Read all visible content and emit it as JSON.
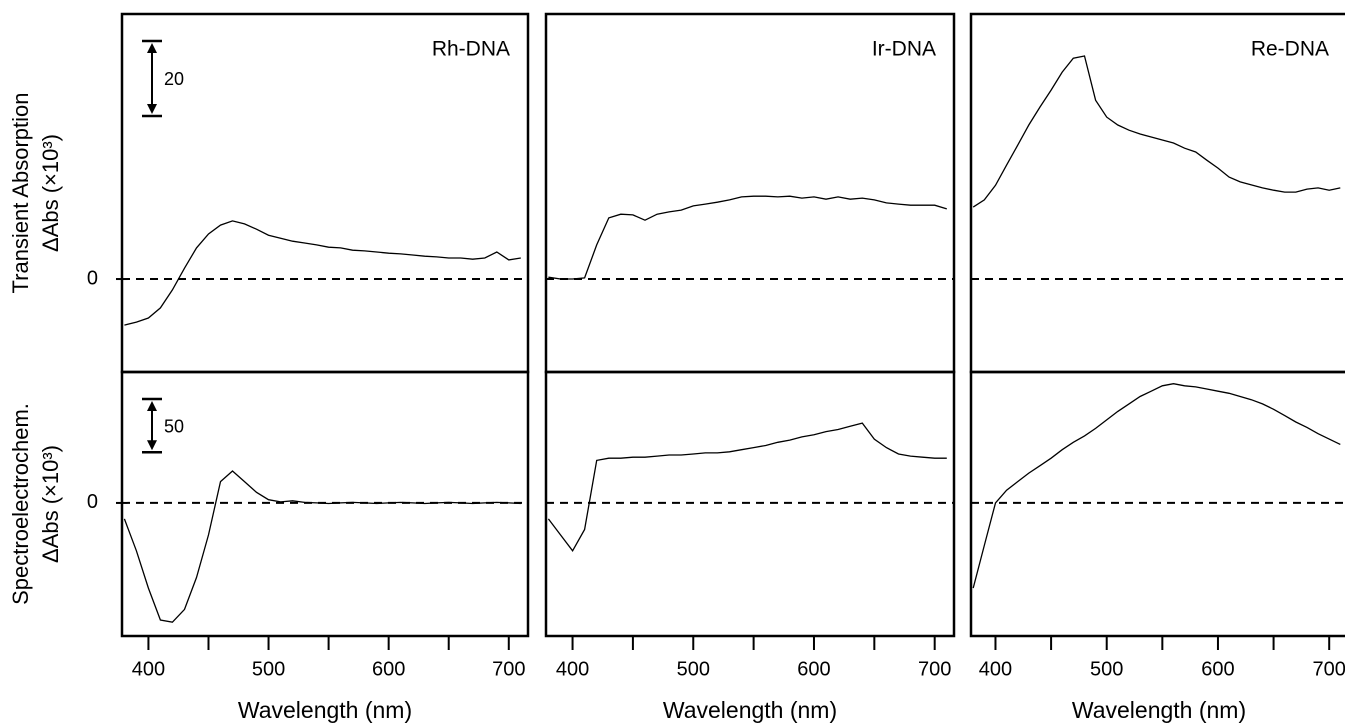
{
  "chart_data": [
    {
      "type": "line",
      "title": "Rh-DNA",
      "ylabel": [
        "Transient Absorption",
        "ΔAbs (×10³)"
      ],
      "color": "#000000",
      "x": [
        380,
        390,
        400,
        410,
        420,
        430,
        440,
        450,
        460,
        470,
        480,
        490,
        500,
        510,
        520,
        530,
        540,
        550,
        560,
        570,
        580,
        590,
        600,
        610,
        620,
        630,
        640,
        650,
        660,
        670,
        680,
        690,
        700,
        710
      ],
      "values": [
        -12.3,
        -11.5,
        -10.4,
        -7.7,
        -2.9,
        2.9,
        8.3,
        12,
        14.4,
        15.5,
        14.7,
        13.3,
        11.7,
        10.9,
        10.1,
        9.6,
        9.1,
        8.5,
        8.3,
        7.7,
        7.5,
        7.2,
        6.9,
        6.7,
        6.4,
        6.1,
        5.9,
        5.6,
        5.6,
        5.3,
        5.6,
        7.2,
        5.1,
        5.6
      ],
      "xlim": [
        378,
        716
      ],
      "ylim": [
        -24.8,
        70.7
      ],
      "yticks": [
        0
      ],
      "hline": 0,
      "scale_bar": 20
    },
    {
      "type": "line",
      "title": "Ir-DNA",
      "color": "#000000",
      "x": [
        380,
        390,
        400,
        410,
        420,
        430,
        440,
        450,
        460,
        470,
        480,
        490,
        500,
        510,
        520,
        530,
        540,
        550,
        560,
        570,
        580,
        590,
        600,
        610,
        620,
        630,
        640,
        650,
        660,
        670,
        680,
        690,
        700,
        710
      ],
      "values": [
        0.5,
        0,
        0,
        0.3,
        9.1,
        16.3,
        17.3,
        17.1,
        15.7,
        17.3,
        17.9,
        18.4,
        19.5,
        20,
        20.5,
        21.1,
        21.9,
        22.1,
        22.1,
        21.9,
        22.1,
        21.6,
        21.9,
        21.3,
        21.9,
        21.3,
        21.6,
        21.1,
        20.3,
        20,
        19.7,
        19.7,
        19.7,
        18.7
      ],
      "xlim": [
        378,
        716
      ],
      "ylim": [
        -24.8,
        70.7
      ],
      "hline": 0
    },
    {
      "type": "line",
      "title": "Re-DNA",
      "color": "#000000",
      "x": [
        380,
        390,
        400,
        410,
        420,
        430,
        440,
        450,
        460,
        470,
        480,
        490,
        500,
        510,
        520,
        530,
        540,
        550,
        560,
        570,
        580,
        590,
        600,
        610,
        620,
        630,
        640,
        650,
        660,
        670,
        680,
        690,
        700,
        710
      ],
      "values": [
        19.2,
        21.1,
        25,
        30.4,
        35.7,
        41.1,
        45.9,
        50.4,
        55.2,
        58.9,
        59.5,
        47.7,
        43.2,
        41.1,
        39.7,
        38.7,
        37.9,
        37.1,
        36.3,
        34.9,
        33.9,
        31.7,
        29.6,
        27.2,
        25.9,
        25.1,
        24.3,
        23.7,
        23.2,
        23.2,
        24,
        24.3,
        23.7,
        24.3
      ],
      "xlim": [
        378,
        716
      ],
      "ylim": [
        -24.8,
        70.7
      ],
      "hline": 0
    },
    {
      "type": "line",
      "ylabel": [
        "Spectroelectrochem.",
        "ΔAbs (×10³)"
      ],
      "xlabel": "Wavelength (nm)",
      "color": "#000000",
      "x": [
        380,
        390,
        400,
        410,
        420,
        430,
        440,
        450,
        460,
        470,
        480,
        490,
        500,
        510,
        520,
        530,
        540,
        550,
        560,
        570,
        580,
        590,
        600,
        610,
        620,
        630,
        640,
        650,
        660,
        670,
        680,
        690,
        700,
        710
      ],
      "values": [
        -15,
        -45,
        -80,
        -110,
        -112,
        -100,
        -70,
        -30,
        20,
        30,
        20,
        10,
        3,
        1,
        2,
        0.5,
        0,
        -0.5,
        0,
        0.5,
        0,
        -0.5,
        0,
        0.5,
        0,
        -0.5,
        0,
        0.5,
        0,
        -0.5,
        0,
        0.5,
        0,
        -0.5
      ],
      "xlim": [
        378,
        716
      ],
      "ylim": [
        -125,
        123
      ],
      "yticks": [
        0
      ],
      "hline": 0,
      "scale_bar": 50,
      "xticks": [
        400,
        500,
        600,
        700
      ],
      "xminor_ticks": [
        450,
        550,
        650
      ]
    },
    {
      "type": "line",
      "xlabel": "Wavelength (nm)",
      "color": "#000000",
      "x": [
        380,
        390,
        400,
        410,
        420,
        430,
        440,
        450,
        460,
        470,
        480,
        490,
        500,
        510,
        520,
        530,
        540,
        550,
        560,
        570,
        580,
        590,
        600,
        610,
        620,
        630,
        640,
        650,
        660,
        670,
        680,
        690,
        700,
        710
      ],
      "values": [
        -15,
        -30,
        -45,
        -25,
        40,
        42,
        42,
        43,
        43,
        44,
        45,
        45,
        46,
        47,
        47,
        48,
        50,
        52,
        54,
        57,
        59,
        62,
        64,
        67,
        69,
        72,
        75,
        60,
        52,
        46,
        44,
        43,
        42,
        42
      ],
      "xlim": [
        378,
        716
      ],
      "ylim": [
        -125,
        123
      ],
      "hline": 0,
      "xticks": [
        400,
        500,
        600,
        700
      ],
      "xminor_ticks": [
        450,
        550,
        650
      ]
    },
    {
      "type": "line",
      "xlabel": "Wavelength (nm)",
      "color": "#000000",
      "x": [
        380,
        390,
        400,
        410,
        420,
        430,
        440,
        450,
        460,
        470,
        480,
        490,
        500,
        510,
        520,
        530,
        540,
        550,
        560,
        570,
        580,
        590,
        600,
        610,
        620,
        630,
        640,
        650,
        660,
        670,
        680,
        690,
        700,
        710
      ],
      "values": [
        -80,
        -40,
        0,
        12,
        20,
        28,
        35,
        42,
        50,
        57,
        63,
        70,
        78,
        86,
        93,
        100,
        105,
        110,
        112,
        110,
        109,
        107,
        105,
        103,
        100,
        97,
        93,
        88,
        82,
        76,
        71,
        65,
        60,
        55
      ],
      "xlim": [
        378,
        716
      ],
      "ylim": [
        -125,
        123
      ],
      "hline": 0,
      "xticks": [
        400,
        500,
        600,
        700
      ],
      "xminor_ticks": [
        450,
        550,
        650
      ]
    }
  ]
}
